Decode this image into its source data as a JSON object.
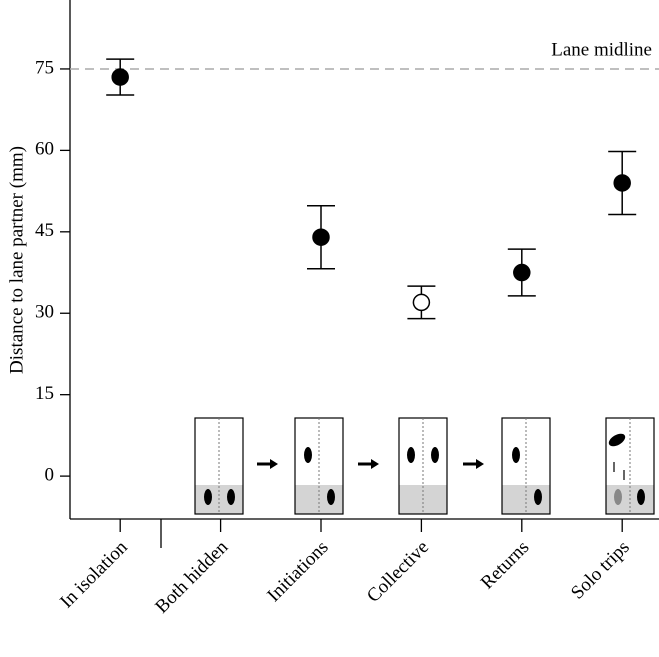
{
  "chart_data": {
    "type": "point",
    "y_label": "Distance to lane partner (mm)",
    "categories": [
      "In isolation",
      "Both hidden",
      "Initiations",
      "Collective",
      "Returns",
      "Solo trips"
    ],
    "values": [
      73.5,
      null,
      44,
      32,
      37.5,
      54
    ],
    "errors": [
      3.3,
      null,
      5.8,
      3,
      4.3,
      5.8
    ],
    "color": "#000000",
    "marker_fills": [
      "#000000",
      null,
      "#000000",
      "#ffffff",
      "#000000",
      "#000000"
    ],
    "ylim": [
      -7.9,
      87.7
    ],
    "yticks": [
      0,
      15,
      30,
      45,
      60,
      75
    ],
    "reference_line": {
      "value": 75,
      "label": "Lane midline",
      "color": "#aaaaaa"
    }
  }
}
